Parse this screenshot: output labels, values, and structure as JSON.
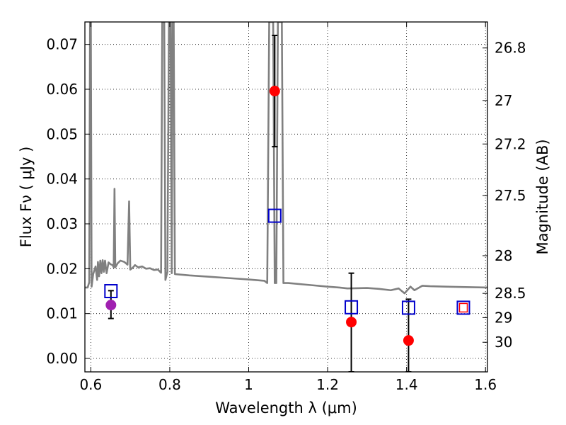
{
  "chart_data": {
    "type": "scatter",
    "xlabel": "Wavelength  λ (μm)",
    "ylabel": "Flux  Fν  ( μJy )",
    "y2label": "Magnitude (AB)",
    "xlim": [
      0.585,
      1.605
    ],
    "ylim": [
      -0.003,
      0.075
    ],
    "grid": true,
    "x_ticks": [
      0.6,
      0.8,
      1.0,
      1.2,
      1.4,
      1.6
    ],
    "x_tick_labels": [
      "0.6",
      "0.8",
      "1",
      "1.2",
      "1.4",
      "1.6"
    ],
    "y_ticks": [
      0.0,
      0.01,
      0.02,
      0.03,
      0.04,
      0.05,
      0.06,
      0.07
    ],
    "y_tick_labels": [
      "0.00",
      "0.01",
      "0.02",
      "0.03",
      "0.04",
      "0.05",
      "0.06",
      "0.07"
    ],
    "y2_ticks": [
      {
        "label": "26.8",
        "flux": 0.0692
      },
      {
        "label": "27",
        "flux": 0.0575
      },
      {
        "label": "27.2",
        "flux": 0.0478
      },
      {
        "label": "27.5",
        "flux": 0.0363
      },
      {
        "label": "28",
        "flux": 0.0229
      },
      {
        "label": "28.5",
        "flux": 0.0145
      },
      {
        "label": "29",
        "flux": 0.0091
      },
      {
        "label": "30",
        "flux": 0.0036
      }
    ],
    "series": [
      {
        "style": "line",
        "color": "#808080",
        "points": [
          [
            0.585,
            0.0158
          ],
          [
            0.592,
            0.0158
          ],
          [
            0.596,
            0.017
          ],
          [
            0.598,
            0.075
          ],
          [
            0.6,
            0.075
          ],
          [
            0.602,
            0.016
          ],
          [
            0.606,
            0.0188
          ],
          [
            0.612,
            0.0205
          ],
          [
            0.616,
            0.0175
          ],
          [
            0.618,
            0.0215
          ],
          [
            0.621,
            0.0183
          ],
          [
            0.624,
            0.0218
          ],
          [
            0.627,
            0.019
          ],
          [
            0.63,
            0.0219
          ],
          [
            0.633,
            0.0193
          ],
          [
            0.636,
            0.0218
          ],
          [
            0.64,
            0.019
          ],
          [
            0.645,
            0.0214
          ],
          [
            0.65,
            0.021
          ],
          [
            0.655,
            0.0208
          ],
          [
            0.658,
            0.0203
          ],
          [
            0.66,
            0.0378
          ],
          [
            0.662,
            0.0203
          ],
          [
            0.668,
            0.0212
          ],
          [
            0.675,
            0.0218
          ],
          [
            0.685,
            0.0215
          ],
          [
            0.693,
            0.0209
          ],
          [
            0.697,
            0.035
          ],
          [
            0.7,
            0.0198
          ],
          [
            0.706,
            0.0202
          ],
          [
            0.712,
            0.0208
          ],
          [
            0.72,
            0.0203
          ],
          [
            0.73,
            0.0205
          ],
          [
            0.74,
            0.02
          ],
          [
            0.75,
            0.0201
          ],
          [
            0.76,
            0.0197
          ],
          [
            0.77,
            0.0198
          ],
          [
            0.778,
            0.0191
          ],
          [
            0.781,
            0.075
          ],
          [
            0.786,
            0.075
          ],
          [
            0.789,
            0.0175
          ],
          [
            0.794,
            0.0193
          ],
          [
            0.798,
            0.075
          ],
          [
            0.802,
            0.075
          ],
          [
            0.805,
            0.019
          ],
          [
            0.807,
            0.075
          ],
          [
            0.81,
            0.075
          ],
          [
            0.813,
            0.0188
          ],
          [
            0.85,
            0.0185
          ],
          [
            0.9,
            0.0182
          ],
          [
            0.95,
            0.0179
          ],
          [
            1.0,
            0.0176
          ],
          [
            1.04,
            0.0173
          ],
          [
            1.047,
            0.0168
          ],
          [
            1.052,
            0.075
          ],
          [
            1.062,
            0.075
          ],
          [
            1.066,
            0.0168
          ],
          [
            1.07,
            0.0168
          ],
          [
            1.074,
            0.075
          ],
          [
            1.084,
            0.075
          ],
          [
            1.088,
            0.0168
          ],
          [
            1.1,
            0.0168
          ],
          [
            1.15,
            0.0164
          ],
          [
            1.2,
            0.016
          ],
          [
            1.23,
            0.0158
          ],
          [
            1.25,
            0.0156
          ],
          [
            1.3,
            0.0157
          ],
          [
            1.33,
            0.0155
          ],
          [
            1.36,
            0.0152
          ],
          [
            1.38,
            0.0156
          ],
          [
            1.395,
            0.0145
          ],
          [
            1.41,
            0.016
          ],
          [
            1.42,
            0.0152
          ],
          [
            1.44,
            0.0162
          ],
          [
            1.46,
            0.0161
          ],
          [
            1.5,
            0.016
          ],
          [
            1.55,
            0.0159
          ],
          [
            1.605,
            0.0158
          ]
        ]
      },
      {
        "style": "errorbar-markers",
        "marker": "circle",
        "color": "#ff0000",
        "points": [
          {
            "x": 1.066,
            "y": 0.0596,
            "yerr_low": 0.0472,
            "yerr_high": 0.072
          },
          {
            "x": 1.26,
            "y": 0.0081,
            "yerr_low": -0.003,
            "yerr_high": 0.019
          },
          {
            "x": 1.405,
            "y": 0.004,
            "yerr_low": -0.003,
            "yerr_high": 0.0132
          }
        ]
      },
      {
        "style": "errorbar-markers",
        "marker": "circle",
        "color": "#a020b0",
        "points": [
          {
            "x": 0.651,
            "y": 0.0119,
            "yerr_low": 0.0089,
            "yerr_high": 0.0151
          }
        ]
      },
      {
        "style": "markers",
        "marker": "open-square",
        "color": "#0000cc",
        "points": [
          {
            "x": 0.651,
            "y": 0.015
          },
          {
            "x": 1.066,
            "y": 0.0318
          },
          {
            "x": 1.26,
            "y": 0.0114
          },
          {
            "x": 1.405,
            "y": 0.0113
          },
          {
            "x": 1.544,
            "y": 0.0113
          }
        ]
      },
      {
        "style": "markers",
        "marker": "open-square-small",
        "color": "#ff0000",
        "points": [
          {
            "x": 1.544,
            "y": 0.0113
          }
        ]
      }
    ]
  }
}
